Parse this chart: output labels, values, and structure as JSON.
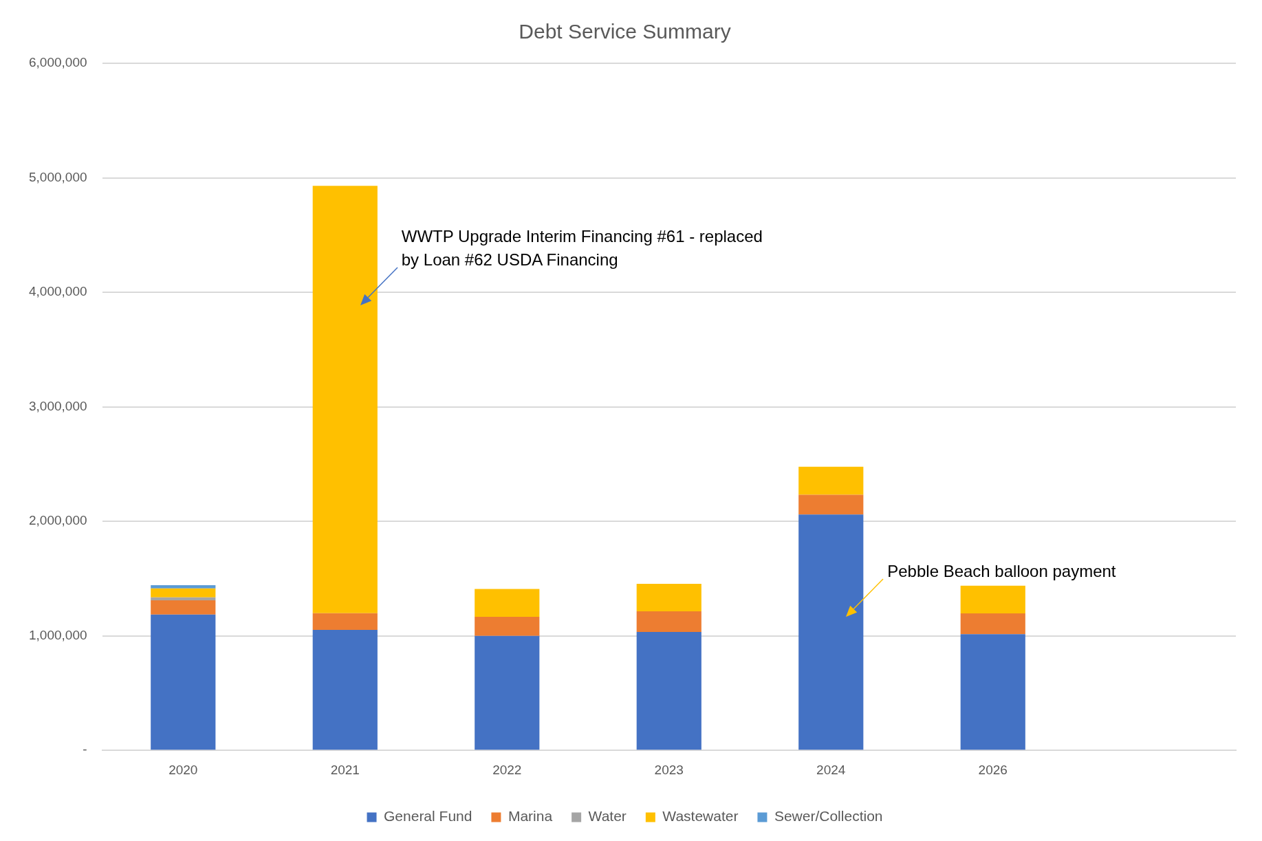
{
  "chart_data": {
    "type": "bar",
    "title": "Debt Service Summary",
    "stacked": true,
    "categories": [
      "2020",
      "2021",
      "2022",
      "2023",
      "2024",
      "2026",
      null
    ],
    "series": [
      {
        "name": "General Fund",
        "color": "#4472c4",
        "values": [
          1186000,
          1052000,
          1000000,
          1034000,
          2060000,
          1014000,
          null
        ]
      },
      {
        "name": "Marina",
        "color": "#ed7d31",
        "values": [
          124000,
          146000,
          166000,
          180000,
          172000,
          182000,
          null
        ]
      },
      {
        "name": "Water",
        "color": "#a5a5a5",
        "values": [
          26000,
          0,
          0,
          0,
          0,
          0,
          null
        ]
      },
      {
        "name": "Wastewater",
        "color": "#ffc000",
        "values": [
          78000,
          3732000,
          244000,
          241000,
          244000,
          242000,
          null
        ]
      },
      {
        "name": "Sewer/Collection",
        "color": "#5b9bd5",
        "values": [
          28000,
          0,
          0,
          0,
          0,
          0,
          null
        ]
      }
    ],
    "ylim": [
      0,
      6000000
    ],
    "yticks": [
      {
        "value": 0,
        "label": "-"
      },
      {
        "value": 1000000,
        "label": "1,000,000"
      },
      {
        "value": 2000000,
        "label": "2,000,000"
      },
      {
        "value": 3000000,
        "label": "3,000,000"
      },
      {
        "value": 4000000,
        "label": "4,000,000"
      },
      {
        "value": 5000000,
        "label": "5,000,000"
      },
      {
        "value": 6000000,
        "label": "6,000,000"
      }
    ],
    "grid": "y",
    "legend": "bottom",
    "annotations": [
      "WWTP Upgrade Interim Financing #61 - replaced by Loan #62 USDA Financing",
      "Pebble Beach balloon payment"
    ]
  }
}
